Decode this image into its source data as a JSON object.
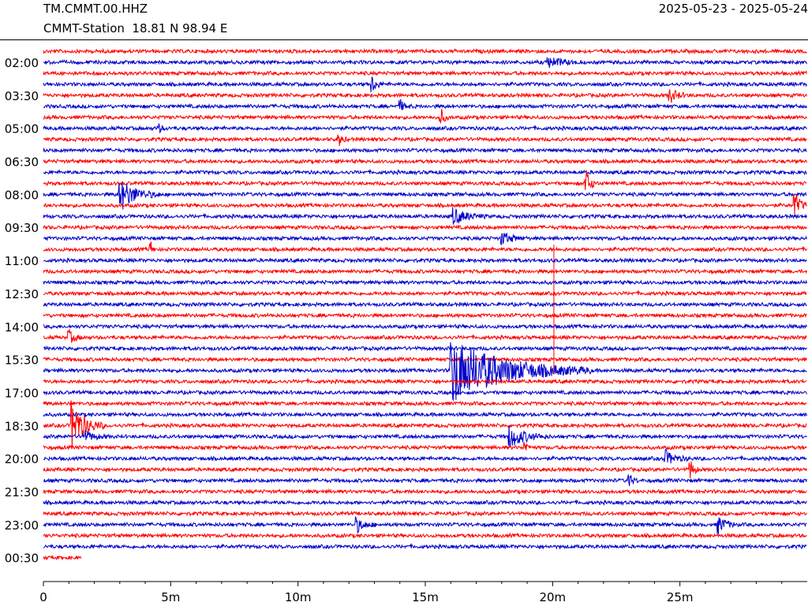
{
  "header": {
    "station_code": "TM.CMMT.00.HHZ",
    "station_info": "CMMT-Station  18.81 N 98.94 E",
    "date_range": "2025-05-23 - 2025-05-24"
  },
  "colors": {
    "red_trace": "#ff0000",
    "blue_trace": "#0000cc"
  },
  "chart_data": {
    "type": "line",
    "title": "",
    "xlabel": "",
    "ylabel": "",
    "x_unit": "minutes",
    "xlim": [
      0,
      30
    ],
    "x_ticks": [
      {
        "value": 0,
        "label": "0"
      },
      {
        "value": 5,
        "label": "5m"
      },
      {
        "value": 10,
        "label": "10m"
      },
      {
        "value": 15,
        "label": "15m"
      },
      {
        "value": 20,
        "label": "20m"
      },
      {
        "value": 25,
        "label": "25m"
      }
    ],
    "x_minor_step": 1,
    "row_count": 47,
    "row_interval_minutes": 30,
    "last_row_minutes": 1.5,
    "color_cycle": [
      "red",
      "blue"
    ],
    "y_tick_labels": [
      {
        "row": 2,
        "label": "02:00"
      },
      {
        "row": 5,
        "label": "03:30"
      },
      {
        "row": 8,
        "label": "05:00"
      },
      {
        "row": 11,
        "label": "06:30"
      },
      {
        "row": 14,
        "label": "08:00"
      },
      {
        "row": 17,
        "label": "09:30"
      },
      {
        "row": 20,
        "label": "11:00"
      },
      {
        "row": 23,
        "label": "12:30"
      },
      {
        "row": 26,
        "label": "14:00"
      },
      {
        "row": 29,
        "label": "15:30"
      },
      {
        "row": 32,
        "label": "17:00"
      },
      {
        "row": 35,
        "label": "18:30"
      },
      {
        "row": 38,
        "label": "20:00"
      },
      {
        "row": 41,
        "label": "21:30"
      },
      {
        "row": 44,
        "label": "23:00"
      },
      {
        "row": 47,
        "label": "00:30"
      }
    ],
    "events": [
      {
        "row": 1,
        "minute": 19.8,
        "amp": 1.0,
        "dur": 1.5
      },
      {
        "row": 3,
        "minute": 12.9,
        "amp": 1.5,
        "dur": 0.5
      },
      {
        "row": 4,
        "minute": 24.6,
        "amp": 1.3,
        "dur": 0.8
      },
      {
        "row": 5,
        "minute": 14.0,
        "amp": 1.0,
        "dur": 0.5
      },
      {
        "row": 6,
        "minute": 15.6,
        "amp": 1.3,
        "dur": 0.4
      },
      {
        "row": 7,
        "minute": 4.5,
        "amp": 0.8,
        "dur": 0.4
      },
      {
        "row": 8,
        "minute": 11.6,
        "amp": 1.0,
        "dur": 0.4
      },
      {
        "row": 12,
        "minute": 21.3,
        "amp": 2.5,
        "dur": 0.5
      },
      {
        "row": 13,
        "minute": 3.0,
        "amp": 3.0,
        "dur": 1.6
      },
      {
        "row": 14,
        "minute": 29.5,
        "amp": 2.2,
        "dur": 0.6
      },
      {
        "row": 15,
        "minute": 16.1,
        "amp": 1.5,
        "dur": 1.3
      },
      {
        "row": 17,
        "minute": 18.0,
        "amp": 1.2,
        "dur": 1.0
      },
      {
        "row": 18,
        "minute": 4.2,
        "amp": 1.2,
        "dur": 0.2
      },
      {
        "row": 26,
        "minute": 1.0,
        "amp": 1.2,
        "dur": 0.6
      },
      {
        "row": 29,
        "minute": 16.0,
        "amp": 6.0,
        "dur": 5.5
      },
      {
        "row": 34,
        "minute": 1.1,
        "amp": 4.5,
        "dur": 1.3
      },
      {
        "row": 35,
        "minute": 1.6,
        "amp": 1.0,
        "dur": 1.0
      },
      {
        "row": 35,
        "minute": 18.3,
        "amp": 2.0,
        "dur": 1.6
      },
      {
        "row": 36,
        "minute": 18.9,
        "amp": 1.2,
        "dur": 0.3
      },
      {
        "row": 37,
        "minute": 24.4,
        "amp": 1.4,
        "dur": 1.0
      },
      {
        "row": 38,
        "minute": 25.4,
        "amp": 1.6,
        "dur": 0.4
      },
      {
        "row": 39,
        "minute": 23.0,
        "amp": 1.2,
        "dur": 0.4
      },
      {
        "row": 43,
        "minute": 12.3,
        "amp": 1.3,
        "dur": 0.8
      },
      {
        "row": 43,
        "minute": 26.5,
        "amp": 1.6,
        "dur": 0.8
      }
    ],
    "spikes": [
      {
        "from_row": 18,
        "to_row": 30,
        "minute": 20.05
      }
    ]
  }
}
